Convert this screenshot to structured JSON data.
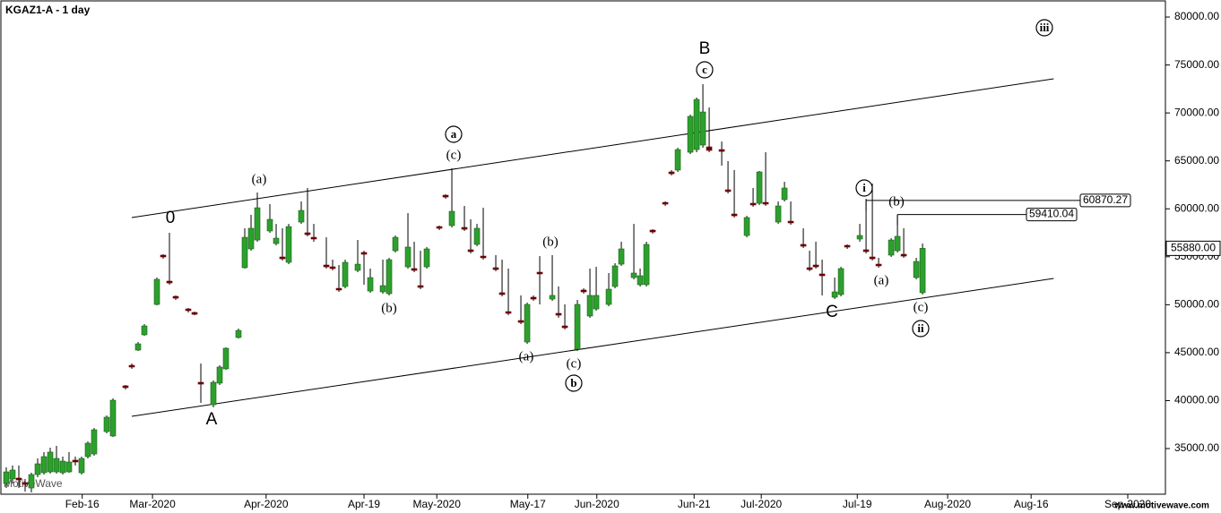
{
  "chart_data": {
    "type": "candlestick",
    "title": "KGAZ1-A - 1 day",
    "watermark": "MotiveWave",
    "logo": "www.motivewave.com",
    "up_color": "#2ca02c",
    "down_color": "#6b0000",
    "x": [
      1,
      2,
      3,
      4,
      5,
      6,
      7,
      8,
      9,
      10,
      11,
      12,
      13,
      14,
      15,
      17,
      18,
      20,
      21,
      22,
      23,
      25,
      26,
      27,
      28,
      30,
      31,
      32,
      34,
      35,
      36,
      38,
      39,
      40,
      41,
      43,
      44,
      45,
      46,
      48,
      49,
      50,
      52,
      53,
      54,
      55,
      57,
      58,
      59,
      61,
      62,
      63,
      65,
      66,
      67,
      68,
      70,
      71,
      72,
      74,
      75,
      76,
      77,
      79,
      80,
      81,
      83,
      84,
      85,
      86,
      88,
      89,
      90,
      92,
      93,
      94,
      95,
      97,
      98,
      99,
      101,
      102,
      103,
      104,
      106,
      107,
      108,
      110,
      111,
      112,
      113,
      115,
      116,
      117,
      119,
      120,
      121,
      122,
      124,
      125,
      126,
      128,
      129,
      130,
      131,
      133,
      134,
      135,
      137,
      138,
      139,
      140,
      142,
      143,
      144,
      146,
      147
    ],
    "open": [
      31360,
      31830,
      31920,
      31450,
      30890,
      32290,
      32480,
      32570,
      32570,
      32480,
      32570,
      33790,
      32480,
      34160,
      34440,
      36770,
      36310,
      41540,
      43680,
      45270,
      46860,
      50030,
      55170,
      52460,
      50870,
      49560,
      49190,
      41910,
      39570,
      41820,
      43310,
      46580,
      53860,
      55820,
      56750,
      57690,
      56380,
      54980,
      54420,
      58620,
      57500,
      57030,
      54140,
      53950,
      51710,
      51900,
      53580,
      55450,
      51430,
      51340,
      51150,
      55630,
      53950,
      53770,
      51990,
      53950,
      58150,
      61420,
      58250,
      58060,
      55730,
      56290,
      55070,
      53860,
      51250,
      49280,
      48350,
      46110,
      50780,
      53390,
      50590,
      49100,
      47790,
      45360,
      51530,
      48820,
      49560,
      50030,
      51900,
      54230,
      52830,
      52090,
      52090,
      57780,
      60670,
      63850,
      64040,
      65900,
      66180,
      66650,
      66460,
      66180,
      61980,
      59460,
      57220,
      60580,
      60580,
      60670,
      58620,
      60960,
      58710,
      56290,
      53860,
      54140,
      53210,
      50780,
      51060,
      56190,
      56850,
      55730,
      54980,
      54230,
      55170,
      55630,
      55260,
      52830,
      51250
    ],
    "high": [
      33040,
      33230,
      33230,
      31830,
      32480,
      33970,
      34630,
      35090,
      35280,
      34160,
      34630,
      34160,
      34160,
      35750,
      37150,
      38450,
      40230,
      41630,
      43870,
      46110,
      47980,
      52830,
      55260,
      57500,
      50970,
      49660,
      49280,
      43870,
      42100,
      43680,
      45550,
      47510,
      57970,
      59370,
      61700,
      60490,
      58430,
      57970,
      58430,
      60770,
      62170,
      58430,
      57030,
      54700,
      54140,
      54700,
      56750,
      55630,
      53770,
      54700,
      54890,
      57220,
      59550,
      56570,
      55630,
      56010,
      58250,
      61510,
      64220,
      60300,
      58900,
      58430,
      60110,
      55170,
      54700,
      53770,
      50970,
      50220,
      50970,
      55070,
      55170,
      51900,
      50030,
      50500,
      51710,
      53770,
      53950,
      53300,
      54330,
      56570,
      58430,
      53770,
      56570,
      57870,
      60770,
      64040,
      66370,
      69820,
      71600,
      73000,
      70570,
      67020,
      64970,
      64040,
      59270,
      62170,
      63940,
      65900,
      60770,
      62820,
      60770,
      57970,
      55630,
      56570,
      54700,
      52830,
      53950,
      56290,
      58430,
      61050,
      62630,
      54890,
      56940,
      59370,
      57970,
      54890,
      56380
    ],
    "low": [
      30890,
      31360,
      30890,
      30520,
      30430,
      32010,
      32290,
      32390,
      32390,
      32290,
      32480,
      33230,
      32290,
      33970,
      34250,
      36590,
      36210,
      41160,
      43310,
      45180,
      46760,
      49940,
      54790,
      52090,
      50500,
      49190,
      48910,
      39760,
      39300,
      41630,
      43220,
      46480,
      53770,
      55630,
      56570,
      57500,
      56190,
      54610,
      54230,
      58430,
      57130,
      56570,
      53770,
      53580,
      51340,
      51710,
      53390,
      52090,
      51250,
      51150,
      50970,
      55450,
      53770,
      53390,
      51620,
      53770,
      57780,
      61050,
      58060,
      57690,
      55350,
      56100,
      54700,
      53490,
      50870,
      48910,
      47980,
      45920,
      50400,
      50030,
      50400,
      48630,
      47420,
      45180,
      51150,
      48630,
      49380,
      49840,
      51710,
      54050,
      52650,
      51900,
      51900,
      57410,
      60300,
      63480,
      63850,
      65710,
      65900,
      66370,
      65900,
      64500,
      61610,
      59090,
      57030,
      60210,
      60400,
      60300,
      58430,
      60770,
      58340,
      55910,
      53490,
      53770,
      50970,
      50590,
      50870,
      55820,
      56570,
      55350,
      54610,
      53860,
      54980,
      55450,
      54890,
      52650,
      51060
    ],
    "close": [
      32570,
      32760,
      31730,
      31270,
      32290,
      33410,
      34160,
      34630,
      33970,
      33690,
      33600,
      33600,
      33970,
      35560,
      36960,
      38270,
      40040,
      41350,
      43500,
      45920,
      47790,
      52650,
      54980,
      52270,
      50680,
      49380,
      49000,
      41720,
      41910,
      43500,
      45460,
      47320,
      57030,
      57970,
      60110,
      58900,
      56940,
      54790,
      58150,
      59830,
      57310,
      56850,
      53950,
      53770,
      51530,
      54420,
      54230,
      55260,
      52830,
      51990,
      54700,
      57030,
      56010,
      53580,
      51810,
      55820,
      57970,
      61230,
      59740,
      57870,
      55540,
      57970,
      54890,
      53670,
      51060,
      49100,
      48160,
      50030,
      50590,
      53210,
      50970,
      48910,
      47600,
      50030,
      51340,
      50970,
      50970,
      51620,
      54050,
      55820,
      53300,
      53020,
      56290,
      57590,
      60490,
      63660,
      66180,
      69640,
      71410,
      70100,
      66090,
      65990,
      61800,
      59270,
      59090,
      60400,
      63850,
      60490,
      60300,
      62170,
      58530,
      56100,
      53670,
      53950,
      53020,
      51340,
      53770,
      56010,
      57220,
      55540,
      54790,
      54050,
      56750,
      57130,
      55070,
      54510,
      55880
    ],
    "xlim": [
      0,
      185.7
    ],
    "ylim": [
      30240,
      81590
    ],
    "xticks": [
      {
        "value": 13.1,
        "label": "Feb-16"
      },
      {
        "value": 24.3,
        "label": "Mar-2020"
      },
      {
        "value": 42.4,
        "label": "Apr-2020"
      },
      {
        "value": 58,
        "label": "Apr-19"
      },
      {
        "value": 69.6,
        "label": "May-2020"
      },
      {
        "value": 84.1,
        "label": "May-17"
      },
      {
        "value": 95.1,
        "label": "Jun-2020"
      },
      {
        "value": 110.6,
        "label": "Jun-21"
      },
      {
        "value": 121.3,
        "label": "Jul-2020"
      },
      {
        "value": 136.6,
        "label": "Jul-19"
      },
      {
        "value": 151,
        "label": "Aug-2020"
      },
      {
        "value": 164.3,
        "label": "Aug-16"
      },
      {
        "value": 179.7,
        "label": "Sep-2020"
      }
    ],
    "yticks": [
      {
        "value": 35000,
        "label": "35000.00"
      },
      {
        "value": 40000,
        "label": "40000.00"
      },
      {
        "value": 45000,
        "label": "45000.00"
      },
      {
        "value": 50000,
        "label": "50000.00"
      },
      {
        "value": 55000,
        "label": "55000.00"
      },
      {
        "value": 60000,
        "label": "60000.00"
      },
      {
        "value": 65000,
        "label": "65000.00"
      },
      {
        "value": 70000,
        "label": "70000.00"
      },
      {
        "value": 75000,
        "label": "75000.00"
      },
      {
        "value": 80000,
        "label": "80000.00"
      }
    ],
    "channel": [
      {
        "x": [
          21,
          167.9
        ],
        "y": [
          59090,
          73560
        ]
      },
      {
        "x": [
          21,
          167.9
        ],
        "y": [
          38360,
          52740
        ]
      }
    ],
    "price_levels": [
      {
        "x": 138,
        "value": 60870.27,
        "label": "60870.27"
      },
      {
        "x": 143,
        "value": 59410.04,
        "label": "59410.04"
      }
    ],
    "last_price": {
      "value": 55880,
      "label": "55880.00"
    },
    "wave_labels": [
      {
        "text": "0"
      },
      {
        "text": "A"
      },
      {
        "text": "B"
      },
      {
        "text": "C"
      },
      {
        "text": "(a)"
      },
      {
        "text": "(b)"
      },
      {
        "text": "a",
        "circled": true
      },
      {
        "text": "(c)"
      },
      {
        "text": "(b)"
      },
      {
        "text": "(a)"
      },
      {
        "text": "(c)"
      },
      {
        "text": "b",
        "circled": true
      },
      {
        "text": "c",
        "circled": true
      },
      {
        "text": "i",
        "circled": true
      },
      {
        "text": "(b)"
      },
      {
        "text": "(a)"
      },
      {
        "text": "(c)"
      },
      {
        "text": "ii",
        "circled": true
      },
      {
        "text": "iii",
        "circled": true
      }
    ]
  }
}
